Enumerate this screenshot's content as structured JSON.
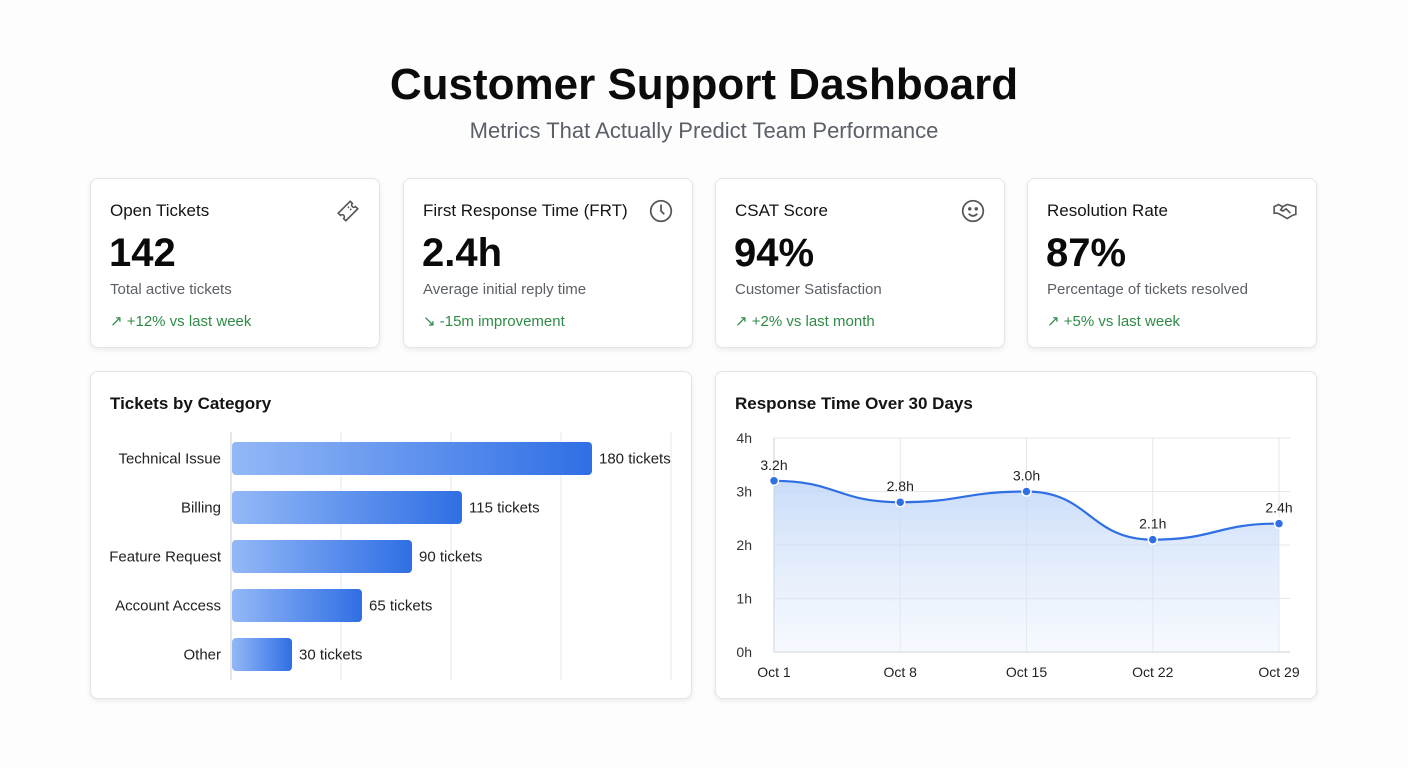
{
  "header": {
    "title": "Customer Support Dashboard",
    "subtitle": "Metrics That Actually Predict Team Performance"
  },
  "kpis": [
    {
      "label": "Open Tickets",
      "value": "142",
      "description": "Total active tickets",
      "trend": "↗ +12% vs last week",
      "icon": "ticket-icon"
    },
    {
      "label": "First Response Time (FRT)",
      "value": "2.4h",
      "description": "Average initial reply time",
      "trend": "↘ -15m improvement",
      "icon": "clock-icon"
    },
    {
      "label": "CSAT Score",
      "value": "94%",
      "description": "Customer Satisfaction",
      "trend": "↗ +2% vs last month",
      "icon": "smiley-icon"
    },
    {
      "label": "Resolution Rate",
      "value": "87%",
      "description": "Percentage of tickets resolved",
      "trend": "↗ +5% vs last week",
      "icon": "handshake-icon"
    }
  ],
  "colors": {
    "trend_positive": "#2e8b47",
    "bar_start": "#93b8f7",
    "bar_end": "#2f6fe4",
    "line": "#2f6fe4"
  },
  "chart_data": [
    {
      "type": "bar",
      "orientation": "horizontal",
      "title": "Tickets by Category",
      "categories": [
        "Technical Issue",
        "Billing",
        "Feature Request",
        "Account Access",
        "Other"
      ],
      "values": [
        180,
        115,
        90,
        65,
        30
      ],
      "data_labels": [
        "180 tickets",
        "115 tickets",
        "90 tickets",
        "65 tickets",
        "30 tickets"
      ],
      "xlim": [
        0,
        220
      ],
      "grid": true
    },
    {
      "type": "area",
      "title": "Response Time Over 30 Days",
      "x": [
        "Oct 1",
        "Oct 8",
        "Oct 15",
        "Oct 22",
        "Oct 29"
      ],
      "values": [
        3.2,
        2.8,
        3.0,
        2.1,
        2.4
      ],
      "data_labels": [
        "3.2h",
        "2.8h",
        "3.0h",
        "2.1h",
        "2.4h"
      ],
      "yticks": [
        "0h",
        "1h",
        "2h",
        "3h",
        "4h"
      ],
      "ylim": [
        0,
        4
      ],
      "grid": true
    }
  ]
}
